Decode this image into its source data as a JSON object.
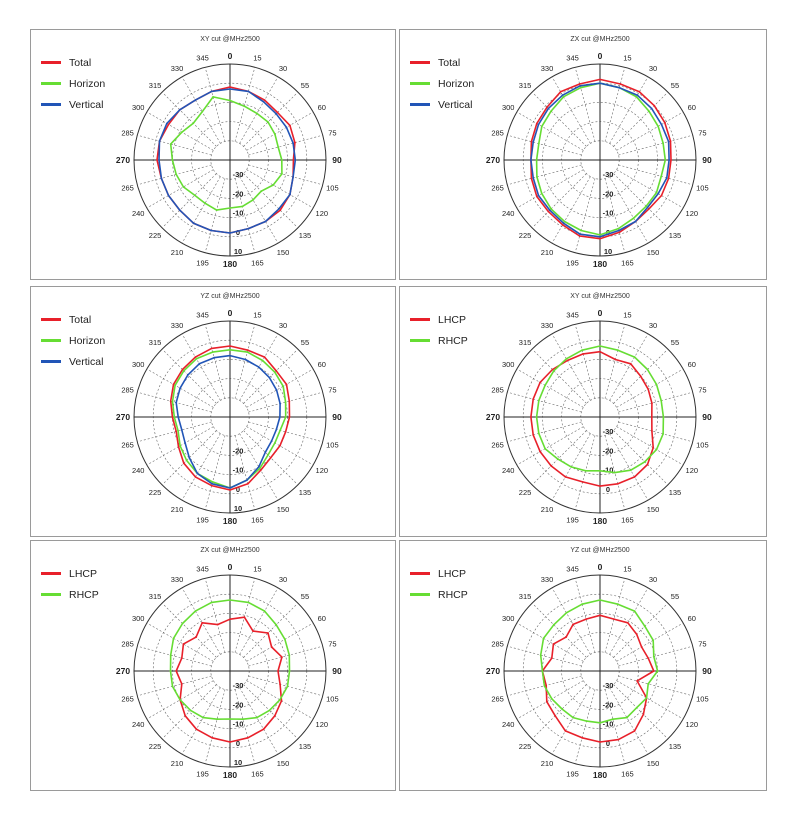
{
  "chart_data": [
    {
      "type": "polar-line",
      "title": "XY cut @MHz2500",
      "angle_labels": [
        "0",
        "15",
        "30",
        "55",
        "60",
        "75",
        "90",
        "105",
        "120",
        "135",
        "150",
        "165",
        "180",
        "195",
        "210",
        "225",
        "240",
        "265",
        "270",
        "285",
        "300",
        "315",
        "330",
        "345"
      ],
      "radial_labels": [
        "-30",
        "-20",
        "-10",
        "0",
        "10"
      ],
      "series": [
        {
          "name": "Total",
          "color": "#e8202a",
          "values": [
            -2,
            -3,
            -4,
            -5,
            -4,
            -5,
            -7,
            -6,
            -4,
            -3,
            -3,
            -3,
            -2,
            -2,
            -2,
            -3,
            -3,
            -3,
            -2,
            -2,
            -3,
            -3,
            -4,
            -3
          ]
        },
        {
          "name": "Horizon",
          "color": "#66dd33",
          "values": [
            -9,
            -11,
            -12,
            -12,
            -13,
            -14,
            -13,
            -12,
            -14,
            -17,
            -16,
            -15,
            -15,
            -13,
            -14,
            -14,
            -12,
            -11,
            -10,
            -8,
            -11,
            -13,
            -11,
            -6
          ]
        },
        {
          "name": "Vertical",
          "color": "#2155b7",
          "values": [
            -3,
            -3,
            -5,
            -6,
            -6,
            -6,
            -6,
            -6,
            -4,
            -4,
            -3,
            -3,
            -2,
            -2,
            -2,
            -3,
            -3,
            -3,
            -3,
            -2,
            -2,
            -3,
            -4,
            -3
          ]
        }
      ]
    },
    {
      "type": "polar-line",
      "title": "ZX cut @MHz2500",
      "angle_labels": [
        "0",
        "15",
        "30",
        "55",
        "60",
        "75",
        "90",
        "105",
        "120",
        "135",
        "150",
        "165",
        "180",
        "195",
        "210",
        "225",
        "240",
        "265",
        "270",
        "285",
        "300",
        "315",
        "330",
        "345"
      ],
      "radial_labels": [
        "-30",
        "-20",
        "-10",
        "0",
        "10"
      ],
      "series": [
        {
          "name": "Total",
          "color": "#e8202a",
          "values": [
            2,
            1,
            1,
            0,
            -1,
            -2,
            -3,
            -3,
            -3,
            -4,
            -3,
            -1,
            1,
            1,
            -1,
            -2,
            -2,
            -3,
            -4,
            -3,
            -2,
            -1,
            1,
            1
          ]
        },
        {
          "name": "Horizon",
          "color": "#66dd33",
          "values": [
            0,
            -1,
            -2,
            -4,
            -5,
            -6,
            -6,
            -7,
            -6,
            -6,
            -5,
            -3,
            -1,
            -2,
            -3,
            -4,
            -5,
            -6,
            -7,
            -7,
            -5,
            -4,
            -2,
            -1
          ]
        },
        {
          "name": "Vertical",
          "color": "#2155b7",
          "values": [
            0,
            -1,
            -1,
            -2,
            -3,
            -3,
            -4,
            -4,
            -5,
            -5,
            -3,
            -2,
            0,
            0,
            -2,
            -3,
            -3,
            -4,
            -4,
            -4,
            -3,
            -2,
            -1,
            0
          ]
        }
      ]
    },
    {
      "type": "polar-line",
      "title": "YZ cut @MHz2500",
      "angle_labels": [
        "0",
        "15",
        "30",
        "55",
        "60",
        "75",
        "90",
        "105",
        "120",
        "135",
        "150",
        "165",
        "180",
        "195",
        "210",
        "225",
        "240",
        "265",
        "270",
        "285",
        "300",
        "315",
        "330",
        "345"
      ],
      "radial_labels": [
        "-20",
        "-10",
        "0",
        "10"
      ],
      "series": [
        {
          "name": "Total",
          "color": "#e8202a",
          "values": [
            -3,
            -4,
            -4,
            -6,
            -6,
            -8,
            -9,
            -10,
            -10,
            -10,
            -8,
            -4,
            -2,
            -3,
            -4,
            -6,
            -9,
            -11,
            -10,
            -8,
            -6,
            -5,
            -4,
            -3
          ]
        },
        {
          "name": "Horizon",
          "color": "#66dd33",
          "values": [
            -5,
            -5,
            -6,
            -7,
            -8,
            -10,
            -11,
            -13,
            -13,
            -12,
            -9,
            -6,
            -3,
            -5,
            -6,
            -8,
            -10,
            -12,
            -11,
            -9,
            -7,
            -6,
            -5,
            -5
          ]
        },
        {
          "name": "Vertical",
          "color": "#2155b7",
          "values": [
            -8,
            -9,
            -10,
            -11,
            -12,
            -13,
            -14,
            -15,
            -15,
            -14,
            -10,
            -6,
            -3,
            -4,
            -6,
            -10,
            -13,
            -14,
            -13,
            -11,
            -10,
            -9,
            -8,
            -8
          ]
        }
      ]
    },
    {
      "type": "polar-line",
      "title": "XY cut @MHz2500",
      "angle_labels": [
        "0",
        "15",
        "30",
        "55",
        "60",
        "75",
        "90",
        "105",
        "120",
        "135",
        "150",
        "165",
        "180",
        "195",
        "210",
        "225",
        "240",
        "265",
        "270",
        "285",
        "300",
        "315",
        "330",
        "345"
      ],
      "radial_labels": [
        "-30",
        "-20",
        "-10",
        "0"
      ],
      "series": [
        {
          "name": "LHCP",
          "color": "#e8202a",
          "values": [
            -6,
            -9,
            -8,
            -10,
            -11,
            -12,
            -13,
            -12,
            -8,
            -5,
            -4,
            -4,
            -4,
            -5,
            -4,
            -4,
            -4,
            -4,
            -4,
            -4,
            -4,
            -5,
            -6,
            -6
          ]
        },
        {
          "name": "RHCP",
          "color": "#66dd33",
          "values": [
            -3,
            -4,
            -4,
            -5,
            -6,
            -7,
            -7,
            -6,
            -6,
            -7,
            -8,
            -10,
            -12,
            -11,
            -10,
            -9,
            -7,
            -7,
            -7,
            -7,
            -7,
            -6,
            -5,
            -4
          ]
        }
      ]
    },
    {
      "type": "polar-line",
      "title": "ZX cut @MHz2500",
      "angle_labels": [
        "0",
        "15",
        "30",
        "55",
        "60",
        "75",
        "90",
        "105",
        "120",
        "135",
        "150",
        "165",
        "180",
        "195",
        "210",
        "225",
        "240",
        "265",
        "270",
        "285",
        "300",
        "315",
        "330",
        "345"
      ],
      "radial_labels": [
        "-30",
        "-20",
        "-10",
        "0",
        "10"
      ],
      "series": [
        {
          "name": "LHCP",
          "color": "#e8202a",
          "values": [
            -13,
            -11,
            -16,
            -12,
            -15,
            -12,
            -15,
            -13,
            -9,
            -7,
            -5,
            -4,
            -3,
            -4,
            -5,
            -7,
            -10,
            -14,
            -12,
            -14,
            -12,
            -15,
            -11,
            -15
          ]
        },
        {
          "name": "RHCP",
          "color": "#66dd33",
          "values": [
            -3,
            -3,
            -4,
            -6,
            -7,
            -8,
            -9,
            -9,
            -10,
            -11,
            -12,
            -14,
            -15,
            -14,
            -12,
            -11,
            -10,
            -9,
            -9,
            -8,
            -6,
            -5,
            -4,
            -3
          ]
        }
      ]
    },
    {
      "type": "polar-line",
      "title": "YZ cut @MHz2500",
      "angle_labels": [
        "0",
        "15",
        "30",
        "55",
        "60",
        "75",
        "90",
        "105",
        "120",
        "135",
        "150",
        "165",
        "180",
        "195",
        "210",
        "225",
        "240",
        "265",
        "270",
        "285",
        "300",
        "315",
        "330",
        "345"
      ],
      "radial_labels": [
        "-30",
        "-20",
        "-10",
        "0"
      ],
      "series": [
        {
          "name": "LHCP",
          "color": "#e8202a",
          "values": [
            -11,
            -12,
            -11,
            -13,
            -15,
            -14,
            -12,
            -20,
            -12,
            -8,
            -4,
            -3,
            -3,
            -4,
            -4,
            -7,
            -8,
            -11,
            -10,
            -14,
            -12,
            -15,
            -12,
            -12
          ]
        },
        {
          "name": "RHCP",
          "color": "#66dd33",
          "values": [
            -3,
            -4,
            -4,
            -7,
            -8,
            -11,
            -10,
            -14,
            -12,
            -13,
            -12,
            -14,
            -13,
            -13,
            -12,
            -12,
            -11,
            -10,
            -10,
            -8,
            -6,
            -6,
            -5,
            -4
          ]
        }
      ]
    }
  ]
}
